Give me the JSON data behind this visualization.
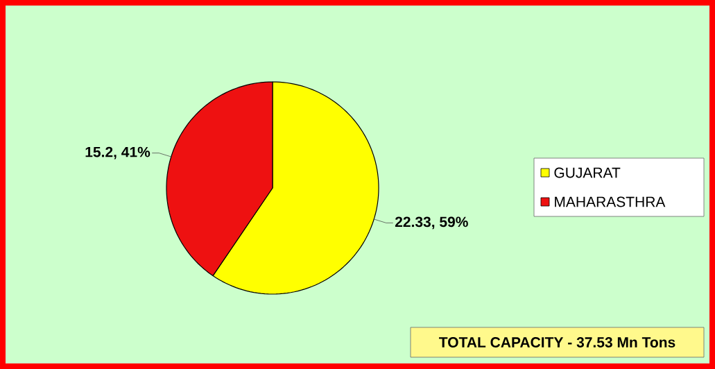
{
  "chart_data": {
    "type": "pie",
    "categories": [
      "GUJARAT",
      "MAHARASTHRA"
    ],
    "values": [
      22.33,
      15.2
    ],
    "colors": [
      "#ffff00",
      "#ee1111"
    ],
    "value_labels": [
      "22.33, 59%",
      "15.2, 41%"
    ],
    "legend": "right",
    "annotations": [
      "TOTAL CAPACITY - 37.53 Mn Tons"
    ]
  }
}
